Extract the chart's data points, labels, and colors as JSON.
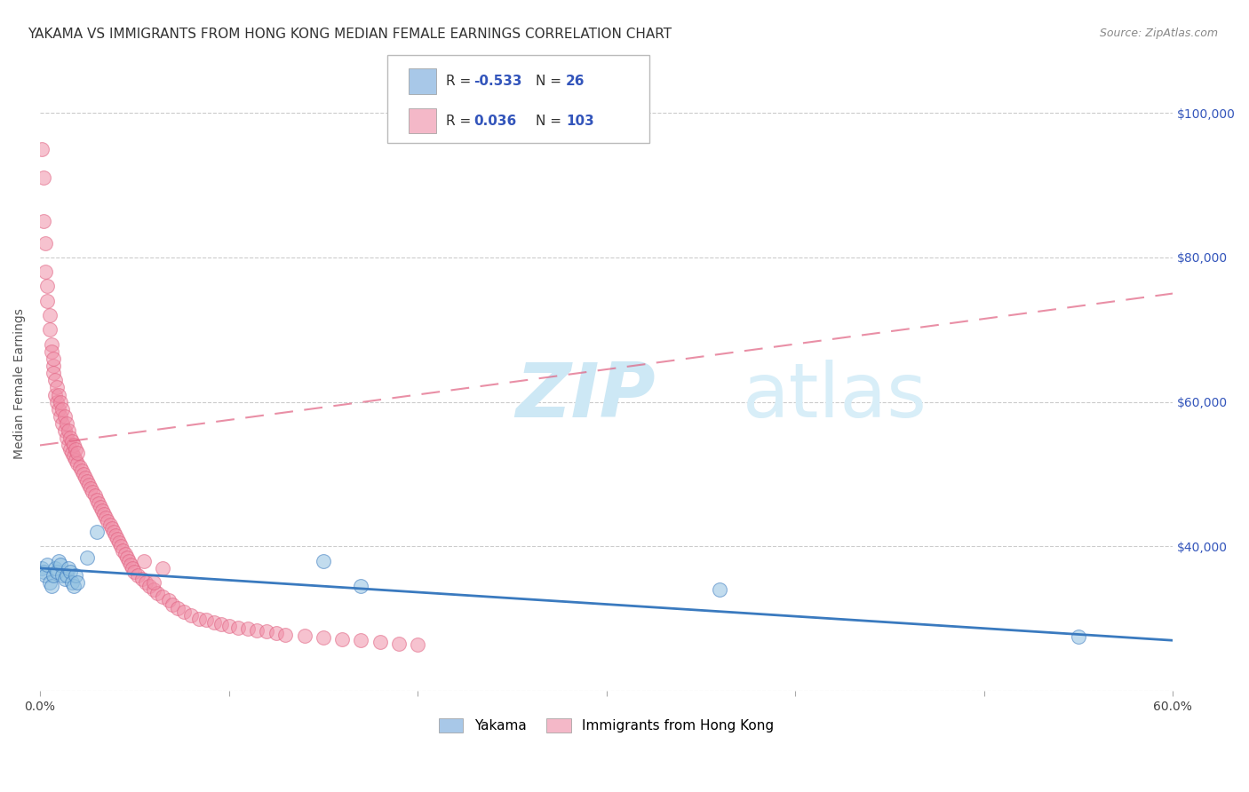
{
  "title": "YAKAMA VS IMMIGRANTS FROM HONG KONG MEDIAN FEMALE EARNINGS CORRELATION CHART",
  "source": "Source: ZipAtlas.com",
  "ylabel": "Median Female Earnings",
  "xlim": [
    0.0,
    0.6
  ],
  "ylim": [
    20000,
    105000
  ],
  "xticks": [
    0.0,
    0.1,
    0.2,
    0.3,
    0.4,
    0.5,
    0.6
  ],
  "xticklabels": [
    "0.0%",
    "",
    "",
    "",
    "",
    "",
    "60.0%"
  ],
  "ytick_positions": [
    20000,
    40000,
    60000,
    80000,
    100000
  ],
  "ytick_labels_right": [
    "",
    "$40,000",
    "$60,000",
    "$80,000",
    "$100,000"
  ],
  "legend_labels": [
    "Yakama",
    "Immigrants from Hong Kong"
  ],
  "blue_color": "#a8c8e8",
  "pink_color": "#f4b8c8",
  "blue_marker_color": "#90c0e0",
  "pink_marker_color": "#f090a8",
  "blue_line_color": "#3a7abf",
  "pink_line_color": "#e06080",
  "right_axis_color": "#3355bb",
  "background_color": "#ffffff",
  "grid_color": "#cccccc",
  "title_fontsize": 11,
  "axis_label_fontsize": 10,
  "tick_fontsize": 10,
  "watermark_color": "#cde8f5",
  "yakama_x": [
    0.001,
    0.002,
    0.003,
    0.004,
    0.005,
    0.006,
    0.007,
    0.008,
    0.009,
    0.01,
    0.011,
    0.012,
    0.013,
    0.014,
    0.015,
    0.016,
    0.017,
    0.018,
    0.019,
    0.02,
    0.025,
    0.03,
    0.15,
    0.17,
    0.36,
    0.55
  ],
  "yakama_y": [
    37000,
    36500,
    36000,
    37500,
    35000,
    34500,
    36000,
    37000,
    36500,
    38000,
    37500,
    36000,
    35500,
    36000,
    37000,
    36500,
    35000,
    34500,
    36000,
    35000,
    38500,
    42000,
    38000,
    34500,
    34000,
    27500
  ],
  "hk_x": [
    0.001,
    0.002,
    0.002,
    0.003,
    0.003,
    0.004,
    0.004,
    0.005,
    0.005,
    0.006,
    0.006,
    0.007,
    0.007,
    0.007,
    0.008,
    0.008,
    0.009,
    0.009,
    0.01,
    0.01,
    0.011,
    0.011,
    0.012,
    0.012,
    0.013,
    0.013,
    0.014,
    0.014,
    0.015,
    0.015,
    0.016,
    0.016,
    0.017,
    0.017,
    0.018,
    0.018,
    0.019,
    0.019,
    0.02,
    0.02,
    0.021,
    0.022,
    0.023,
    0.024,
    0.025,
    0.026,
    0.027,
    0.028,
    0.029,
    0.03,
    0.031,
    0.032,
    0.033,
    0.034,
    0.035,
    0.036,
    0.037,
    0.038,
    0.039,
    0.04,
    0.041,
    0.042,
    0.043,
    0.044,
    0.045,
    0.046,
    0.047,
    0.048,
    0.049,
    0.05,
    0.052,
    0.054,
    0.056,
    0.058,
    0.06,
    0.062,
    0.065,
    0.068,
    0.07,
    0.073,
    0.076,
    0.08,
    0.084,
    0.088,
    0.092,
    0.096,
    0.1,
    0.105,
    0.11,
    0.115,
    0.12,
    0.125,
    0.13,
    0.14,
    0.15,
    0.16,
    0.17,
    0.18,
    0.19,
    0.2,
    0.055,
    0.06,
    0.065
  ],
  "hk_y": [
    95000,
    85000,
    91000,
    78000,
    82000,
    74000,
    76000,
    72000,
    70000,
    68000,
    67000,
    65000,
    66000,
    64000,
    63000,
    61000,
    60000,
    62000,
    59000,
    61000,
    58000,
    60000,
    57000,
    59000,
    56000,
    58000,
    55000,
    57000,
    54000,
    56000,
    53500,
    55000,
    53000,
    54500,
    52500,
    54000,
    52000,
    53500,
    51500,
    53000,
    51000,
    50500,
    50000,
    49500,
    49000,
    48500,
    48000,
    47500,
    47000,
    46500,
    46000,
    45500,
    45000,
    44500,
    44000,
    43500,
    43000,
    42500,
    42000,
    41500,
    41000,
    40500,
    40000,
    39500,
    39000,
    38500,
    38000,
    37500,
    37000,
    36500,
    36000,
    35500,
    35000,
    34500,
    34000,
    33500,
    33000,
    32500,
    32000,
    31500,
    31000,
    30500,
    30000,
    29800,
    29500,
    29200,
    29000,
    28800,
    28600,
    28400,
    28200,
    28000,
    27800,
    27600,
    27400,
    27200,
    27000,
    26800,
    26600,
    26400,
    38000,
    35000,
    37000
  ],
  "blue_trend_x": [
    0.0,
    0.6
  ],
  "blue_trend_y": [
    37000,
    27000
  ],
  "pink_trend_x": [
    0.0,
    0.6
  ],
  "pink_trend_y": [
    54000,
    75000
  ]
}
